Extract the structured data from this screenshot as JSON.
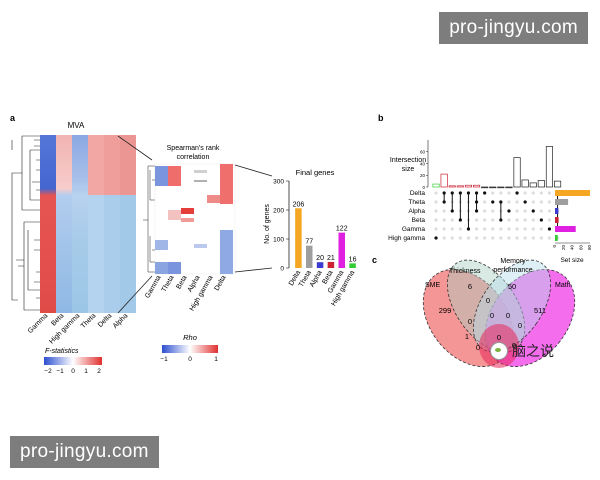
{
  "watermark": "pro-jingyu.com",
  "panel_labels": {
    "a": "a",
    "b": "b",
    "c": "c"
  },
  "mva": {
    "title": "MVA",
    "columns": [
      "Gamma",
      "Beta",
      "High gamma",
      "Theta",
      "Delta",
      "Alpha"
    ],
    "legend_title": "F-statistics",
    "legend_ticks": [
      "−2",
      "−1",
      "0",
      "1",
      "2"
    ]
  },
  "spearman": {
    "title_line1": "Spearman's rank",
    "title_line2": "correlation",
    "columns": [
      "Gamma",
      "Theta",
      "Beta",
      "Alpha",
      "High gamma",
      "Delta"
    ],
    "legend_title": "Rho",
    "legend_ticks": [
      "−1",
      "0",
      "1"
    ]
  },
  "final_genes": {
    "title": "Final genes",
    "ylabel": "No. of genes"
  },
  "upset": {
    "ylabel_line1": "Intersection",
    "ylabel_line2": "size",
    "rows": [
      "Delta",
      "Theta",
      "Alpha",
      "Beta",
      "Gamma",
      "High gamma"
    ],
    "set_size_label": "Set size"
  },
  "venn": {
    "sets": [
      "SME",
      "Thickness",
      "Memory performance",
      "Math"
    ],
    "set_label_memory_line1": "Memory",
    "set_label_memory_line2": "performance",
    "values": [
      "299",
      "6",
      "50",
      "511",
      "0",
      "0",
      "0",
      "0",
      "0",
      "1",
      "0",
      "0",
      "0",
      "0"
    ]
  },
  "brand_logo": {
    "text": "脑之说",
    "icon": "wechat-bubble-icon"
  },
  "chart_data": [
    {
      "type": "bar",
      "title": "Final genes",
      "xlabel": "",
      "ylabel": "No. of genes",
      "categories": [
        "Delta",
        "Theta",
        "Alpha",
        "Beta",
        "Gamma",
        "High gamma"
      ],
      "values": [
        206,
        77,
        20,
        21,
        122,
        16
      ],
      "ylim": [
        0,
        300
      ],
      "yticks": [
        0,
        100,
        200,
        300
      ],
      "colors": [
        "#f5a623",
        "#9e9e9e",
        "#3b3bd1",
        "#cc2233",
        "#e020e0",
        "#33cc33"
      ]
    },
    {
      "type": "bar",
      "title": "",
      "xlabel": "",
      "ylabel": "Intersection size",
      "categories": [
        "1",
        "2",
        "3",
        "4",
        "5",
        "6",
        "7",
        "8",
        "9",
        "10",
        "11",
        "12",
        "13",
        "14",
        "15",
        "16"
      ],
      "values": [
        5,
        22,
        2,
        2,
        3,
        3,
        0,
        0,
        0,
        0,
        50,
        12,
        7,
        11,
        69,
        10
      ],
      "ylim": [
        0,
        80
      ],
      "yticks": [
        0,
        20,
        40,
        60
      ]
    },
    {
      "type": "bar",
      "title": "",
      "xlabel": "Set size",
      "ylabel": "",
      "categories": [
        "Delta",
        "Theta",
        "Alpha",
        "Beta",
        "Gamma",
        "High gamma"
      ],
      "values": [
        206,
        77,
        20,
        21,
        122,
        16
      ],
      "xticks": [
        "0",
        "20",
        "40",
        "60",
        "80"
      ],
      "colors": [
        "#f5a623",
        "#9e9e9e",
        "#3b3bd1",
        "#cc2233",
        "#e020e0",
        "#33cc33"
      ]
    }
  ]
}
